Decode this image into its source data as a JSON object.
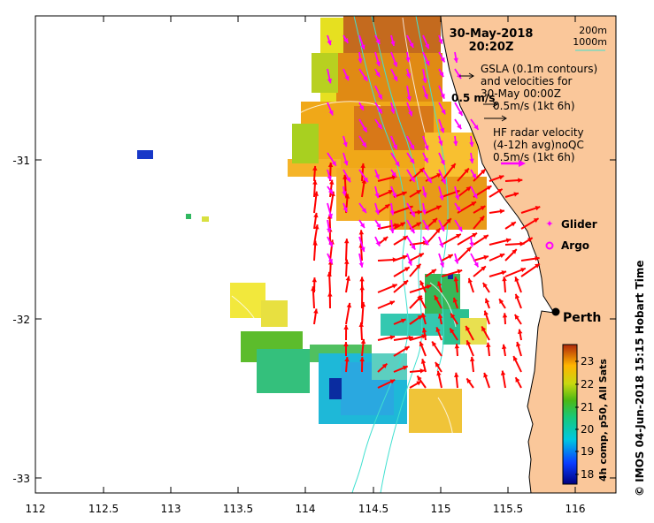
{
  "map": {
    "date": "30-May-2018",
    "time": "20:20Z",
    "contour_legend": {
      "line1": "200m",
      "line2": "1000m",
      "color": "#40e0d0"
    },
    "gsla_legend": {
      "line1": "GSLA (0.1m contours)",
      "line2": "and velocities for",
      "line3": "30-May 00:00Z",
      "line4": "0.5m/s (1kt 6h)"
    },
    "scale_arrow_label": "0.5 m/s",
    "hf_legend": {
      "line1": "HF radar velocity",
      "line2": "(4-12h avg)noQC",
      "line3": "0.5m/s (1kt 6h)"
    },
    "markers": {
      "glider": "Glider",
      "argo": "Argo",
      "city": "Perth"
    },
    "x_ticks": [
      "112",
      "112.5",
      "113",
      "113.5",
      "114",
      "114.5",
      "115",
      "115.5",
      "116"
    ],
    "y_ticks": [
      "-31",
      "-32",
      "-33"
    ],
    "colorbar": {
      "label": "4h comp, p50, All Sats",
      "ticks": [
        "23",
        "22",
        "21",
        "20",
        "19",
        "18"
      ],
      "range": [
        17.8,
        23.8
      ]
    },
    "credit": "© IMOS 04-Jun-2018 15:15 Hobart Time",
    "colors": {
      "land": "#fac79a",
      "hf_arrow": "#ff0000",
      "gsla_arrow": "#ff00ff",
      "contour": "#40e0d0"
    }
  }
}
